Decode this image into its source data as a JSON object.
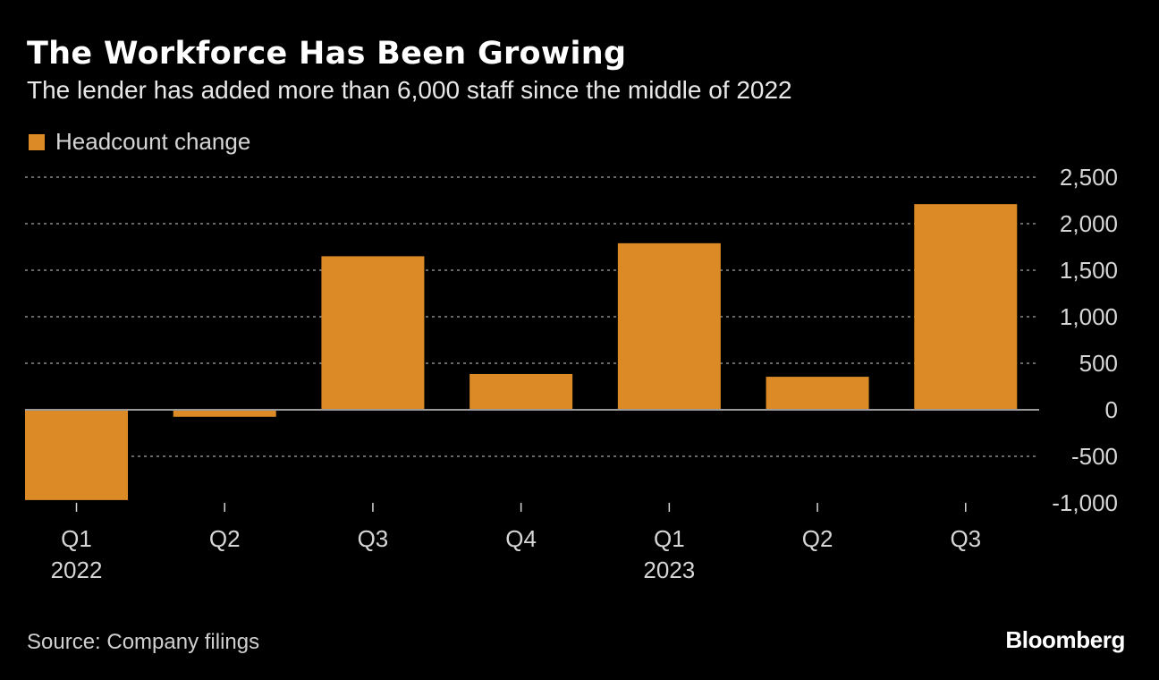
{
  "title": "The Workforce Has Been Growing",
  "subtitle": "The lender has added more than 6,000 staff since the middle of 2022",
  "legend": {
    "label": "Headcount change"
  },
  "source": "Source: Company filings",
  "brand": "Bloomberg",
  "colors": {
    "bar": "#DB8A26",
    "background": "#000000",
    "grid": "#8a8a8a",
    "axis_text": "#d6d6d6"
  },
  "chart_data": {
    "type": "bar",
    "categories": [
      "Q1",
      "Q2",
      "Q3",
      "Q4",
      "Q1",
      "Q2",
      "Q3"
    ],
    "category_years": [
      "2022",
      "",
      "",
      "",
      "2023",
      "",
      ""
    ],
    "series": [
      {
        "name": "Headcount change",
        "values": [
          -970,
          -75,
          1650,
          385,
          1790,
          355,
          2210
        ]
      }
    ],
    "ylim": [
      -1000,
      2500
    ],
    "yticks": [
      2500,
      2000,
      1500,
      1000,
      500,
      0,
      -500,
      -1000
    ],
    "ytick_labels": [
      "2,500",
      "2,000",
      "1,500",
      "1,000",
      "500",
      "0",
      "-500",
      "-1,000"
    ],
    "xlabel": "",
    "ylabel": "",
    "grid": true,
    "legend_position": "top-left"
  }
}
